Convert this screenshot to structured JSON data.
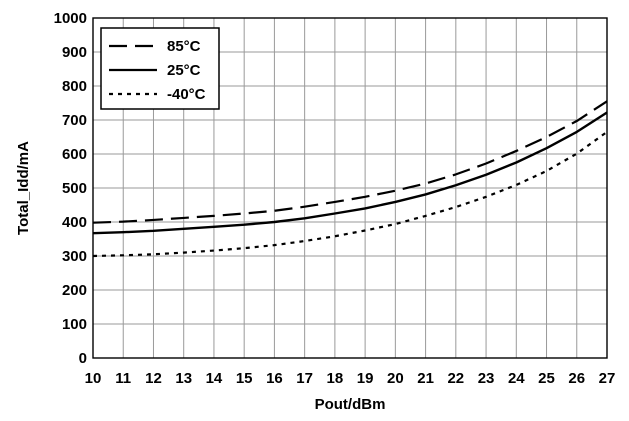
{
  "chart_data": {
    "type": "line",
    "title": "",
    "xlabel": "Pout/dBm",
    "ylabel": "Total_Idd/mA",
    "xlim": [
      10,
      27
    ],
    "ylim": [
      0,
      1000
    ],
    "xticks": [
      10,
      11,
      12,
      13,
      14,
      15,
      16,
      17,
      18,
      19,
      20,
      21,
      22,
      23,
      24,
      25,
      26,
      27
    ],
    "yticks": [
      0,
      100,
      200,
      300,
      400,
      500,
      600,
      700,
      800,
      900,
      1000
    ],
    "grid": true,
    "legend_position": "top-left",
    "x": [
      10,
      11,
      12,
      13,
      14,
      15,
      16,
      17,
      18,
      19,
      20,
      21,
      22,
      23,
      24,
      25,
      26,
      27
    ],
    "series": [
      {
        "name": "85°C",
        "style": "dashed",
        "values": [
          398,
          401,
          406,
          412,
          418,
          425,
          433,
          445,
          459,
          474,
          492,
          513,
          540,
          572,
          609,
          650,
          697,
          755
        ]
      },
      {
        "name": "25°C",
        "style": "solid",
        "values": [
          367,
          370,
          374,
          380,
          386,
          392,
          400,
          411,
          425,
          440,
          459,
          481,
          508,
          539,
          575,
          617,
          665,
          722
        ]
      },
      {
        "name": "-40°C",
        "style": "dotted",
        "values": [
          300,
          302,
          305,
          310,
          316,
          323,
          332,
          344,
          358,
          375,
          394,
          418,
          444,
          474,
          509,
          550,
          601,
          665
        ]
      }
    ]
  }
}
